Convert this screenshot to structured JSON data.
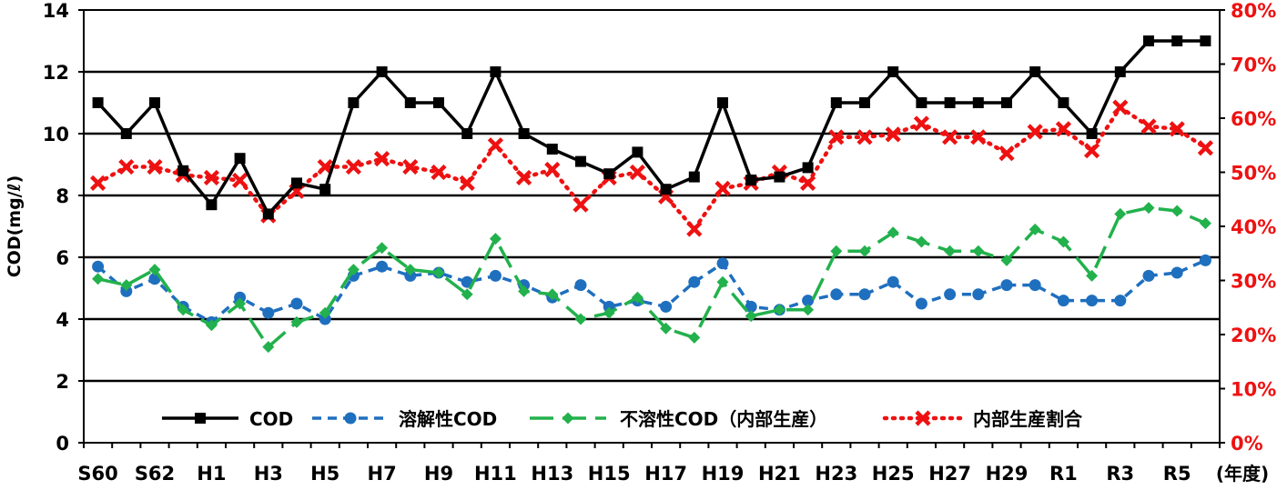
{
  "chart_data": {
    "type": "line",
    "ylabel": "COD(mg/ℓ)",
    "xunit": "(年度)",
    "ylim": [
      0,
      14
    ],
    "y2lim": [
      0,
      80
    ],
    "yticks": [
      "0",
      "2",
      "4",
      "6",
      "8",
      "10",
      "12",
      "14"
    ],
    "y2ticks": [
      "0%",
      "10%",
      "20%",
      "30%",
      "40%",
      "50%",
      "60%",
      "70%",
      "80%"
    ],
    "x": [
      "S60",
      "S61",
      "S62",
      "S63",
      "H1",
      "H2",
      "H3",
      "H4",
      "H5",
      "H6",
      "H7",
      "H8",
      "H9",
      "H10",
      "H11",
      "H12",
      "H13",
      "H14",
      "H15",
      "H16",
      "H17",
      "H18",
      "H19",
      "H20",
      "H21",
      "H22",
      "H23",
      "H24",
      "H25",
      "H26",
      "H27",
      "H28",
      "H29",
      "H30",
      "R1",
      "R2",
      "R3",
      "R4",
      "R5",
      "R6"
    ],
    "xtick_labels": [
      "S60",
      "",
      "S62",
      "",
      "H1",
      "",
      "H3",
      "",
      "H5",
      "",
      "H7",
      "",
      "H9",
      "",
      "H11",
      "",
      "H13",
      "",
      "H15",
      "",
      "H17",
      "",
      "H19",
      "",
      "H21",
      "",
      "H23",
      "",
      "H25",
      "",
      "H27",
      "",
      "H29",
      "",
      "R1",
      "",
      "R3",
      "",
      "R5",
      ""
    ],
    "grid": "horizontal",
    "legend_position": "bottom",
    "series": [
      {
        "name": "COD",
        "axis": "left",
        "color": "#000000",
        "style": "solid",
        "marker": "square",
        "values": [
          11,
          10,
          11,
          8.8,
          7.7,
          9.2,
          7.4,
          8.4,
          8.2,
          11,
          12,
          11,
          11,
          10,
          12,
          10,
          9.5,
          9.1,
          8.7,
          9.4,
          8.2,
          8.6,
          11,
          8.5,
          8.6,
          8.9,
          11,
          11,
          12,
          11,
          11,
          11,
          11,
          12,
          11,
          10,
          12,
          13,
          13,
          13
        ]
      },
      {
        "name": "溶解性COD",
        "axis": "left",
        "color": "#1f6fbf",
        "style": "dashed",
        "marker": "circle",
        "values": [
          5.7,
          4.9,
          5.3,
          4.4,
          3.9,
          4.7,
          4.2,
          4.5,
          4.0,
          5.4,
          5.7,
          5.4,
          5.5,
          5.2,
          5.4,
          5.1,
          4.7,
          5.1,
          4.4,
          4.6,
          4.4,
          5.2,
          5.8,
          4.4,
          4.3,
          4.6,
          4.8,
          4.8,
          5.2,
          4.5,
          4.8,
          4.8,
          5.1,
          5.1,
          4.6,
          4.6,
          4.6,
          5.4,
          5.5,
          5.9
        ]
      },
      {
        "name": "不溶性COD（内部生産）",
        "axis": "left",
        "color": "#22b14c",
        "style": "longdash",
        "marker": "diamond",
        "values": [
          5.3,
          5.1,
          5.6,
          4.3,
          3.8,
          4.5,
          3.1,
          3.9,
          4.2,
          5.6,
          6.3,
          5.6,
          5.5,
          4.8,
          6.6,
          4.9,
          4.8,
          4.0,
          4.2,
          4.7,
          3.7,
          3.4,
          5.2,
          4.1,
          4.3,
          4.3,
          6.2,
          6.2,
          6.8,
          6.5,
          6.2,
          6.2,
          5.9,
          6.9,
          6.5,
          5.4,
          7.4,
          7.6,
          7.5,
          7.1
        ]
      },
      {
        "name": "内部生産割合",
        "axis": "right",
        "color": "#ee1111",
        "style": "dotted",
        "marker": "x",
        "values": [
          48,
          51,
          51,
          49.5,
          49,
          48.5,
          42,
          46.5,
          51,
          51,
          52.5,
          51,
          50,
          48,
          55,
          49,
          50.5,
          44,
          49,
          50,
          45.5,
          39.5,
          47,
          48,
          50,
          48,
          56.5,
          56.5,
          57,
          59,
          56.5,
          56.5,
          53.5,
          57.5,
          58,
          54,
          62,
          58.5,
          58,
          54.5
        ]
      }
    ]
  }
}
